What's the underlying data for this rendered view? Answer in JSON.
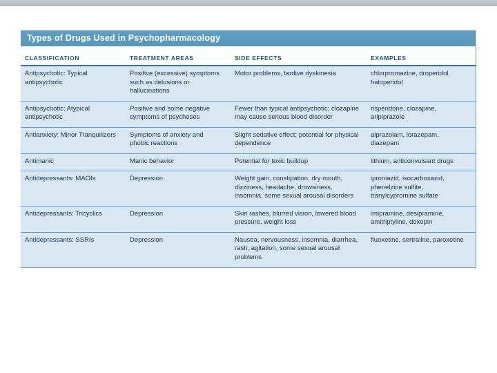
{
  "title": "Types of Drugs Used in Psychopharmacology",
  "colors": {
    "title_bar": "#5f9ec0",
    "row_background": "#d9e7f2",
    "separator": "#6b9cbf",
    "column_header_text": "#1a5276",
    "body_text": "#15365a"
  },
  "table": {
    "columns": [
      "CLASSIFICATION",
      "TREATMENT AREAS",
      "SIDE EFFECTS",
      "EXAMPLES"
    ],
    "rows": [
      {
        "classification": "Antipsychotic: Typical antipsychotic",
        "treatment": "Positive (excessive) symptoms such as delusions or hallucinations",
        "side_effects": "Motor problems, tardive dyskinesia",
        "examples": "chlorpromazine, droperidol, haloperidol"
      },
      {
        "classification": "Antipsychotic: Atypical antipsychotic",
        "treatment": "Positive and some negative symptoms of psychoses",
        "side_effects": "Fewer than typical antipsychotic; clozapine may cause serious blood disorder",
        "examples": "risperidone, clozapine, aripiprazole"
      },
      {
        "classification": "Antianxiety: Minor Tranquilizers",
        "treatment": "Symptoms of anxiety and phobic reactions",
        "side_effects": "Slight sedative effect; potential for physical dependence",
        "examples": "alprazolam, lorazepam, diazepam"
      },
      {
        "classification": "Antimanic",
        "treatment": "Manic behavior",
        "side_effects": "Potential for toxic buildup",
        "examples": "lithium, anticonvulsant drugs"
      },
      {
        "classification": "Antidepressants: MAOIs",
        "treatment": "Depression",
        "side_effects": "Weight gain, constipation, dry mouth, dizziness, headache, drowsiness, insomnia, some sexual arousal disorders",
        "examples": "iproniazid, isocarboxazid, phenelzine sulfite, tranylcypromine sulfate"
      },
      {
        "classification": "Antidepressants: Tricyclics",
        "treatment": "Depression",
        "side_effects": "Skin rashes, blurred vision, lowered blood pressure, weight loss",
        "examples": "imipramine, desipramine, amitriptyline, doxepin"
      },
      {
        "classification": "Antidepressants: SSRIs",
        "treatment": "Depression",
        "side_effects": "Nausea, nervousness, insomnia, diarrhea, rash, agitation, some sexual arousal problems",
        "examples": "fluoxetine, sertraline, paroxetine"
      }
    ]
  }
}
